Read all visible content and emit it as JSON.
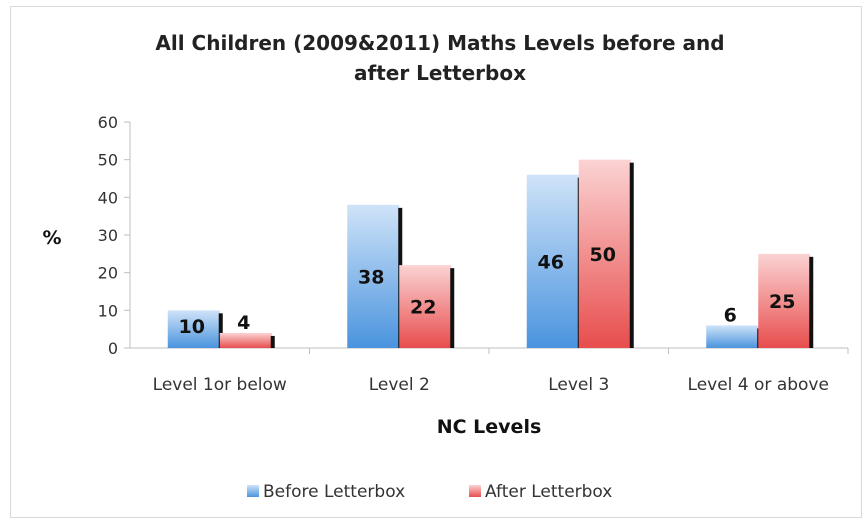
{
  "chart_data": {
    "type": "bar",
    "title_lines": [
      "All Children (2009&2011) Maths Levels before and",
      "after Letterbox"
    ],
    "xlabel": "NC Levels",
    "ylabel": "%",
    "ylim": [
      0,
      60
    ],
    "yticks": [
      0,
      10,
      20,
      30,
      40,
      50,
      60
    ],
    "categories": [
      "Level 1or below",
      "Level 2",
      "Level 3",
      "Level 4 or above"
    ],
    "series": [
      {
        "name": "Before Letterbox",
        "values": [
          10,
          38,
          46,
          6
        ],
        "color": "#7fb4ea",
        "color_dark": "#4a8fdb"
      },
      {
        "name": "After Letterbox",
        "values": [
          4,
          22,
          50,
          25
        ],
        "color": "#f4a0a0",
        "color_dark": "#e04848"
      }
    ],
    "grid": false,
    "legend_position": "bottom"
  }
}
